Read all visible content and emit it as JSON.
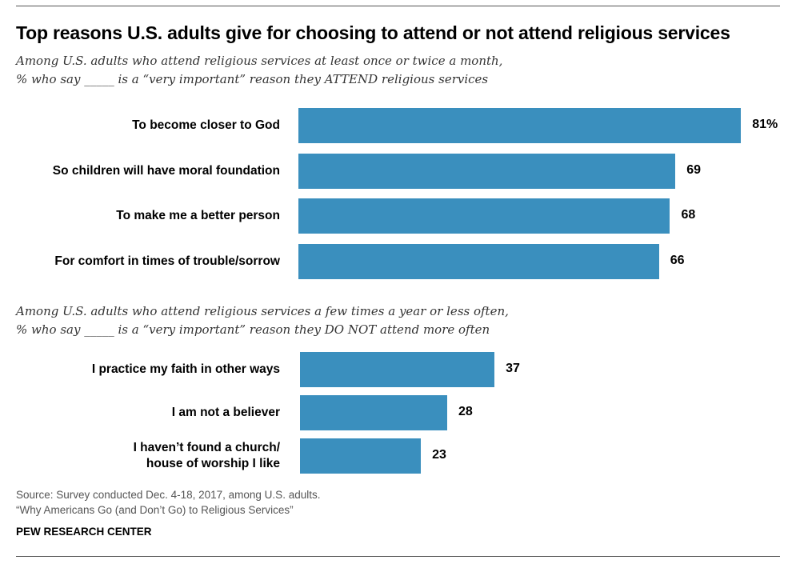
{
  "chart_data": [
    {
      "type": "bar",
      "orientation": "horizontal",
      "title": "Top reasons U.S. adults give for choosing to attend or not attend religious services",
      "subtitle": [
        "Among U.S. adults who attend religious services at least once or twice a month,",
        "% who say _____ is a “very important” reason they ATTEND religious services"
      ],
      "categories": [
        "To become closer to God",
        "So children will have moral foundation",
        "To make me a better person",
        "For comfort in times of trouble/sorrow"
      ],
      "values": [
        81,
        69,
        68,
        66
      ],
      "value_labels": [
        "81%",
        "69",
        "68",
        "66"
      ],
      "color": "#3a8fbe"
    },
    {
      "type": "bar",
      "orientation": "horizontal",
      "subtitle": [
        "Among U.S. adults who attend religious services a few times a year or less often,",
        "% who say _____ is a “very important” reason they DO NOT attend more often"
      ],
      "categories": [
        [
          "I practice my faith in other ways"
        ],
        [
          "I am not a believer"
        ],
        [
          "I haven’t found a church/",
          "house of worship I like"
        ]
      ],
      "values": [
        37,
        28,
        23
      ],
      "value_labels": [
        "37",
        "28",
        "23"
      ],
      "color": "#3a8fbe"
    }
  ],
  "source": [
    "Source: Survey conducted Dec. 4-18, 2017, among U.S. adults.",
    "“Why Americans Go (and Don’t Go) to Religious Services”"
  ],
  "brand": "PEW RESEARCH CENTER"
}
